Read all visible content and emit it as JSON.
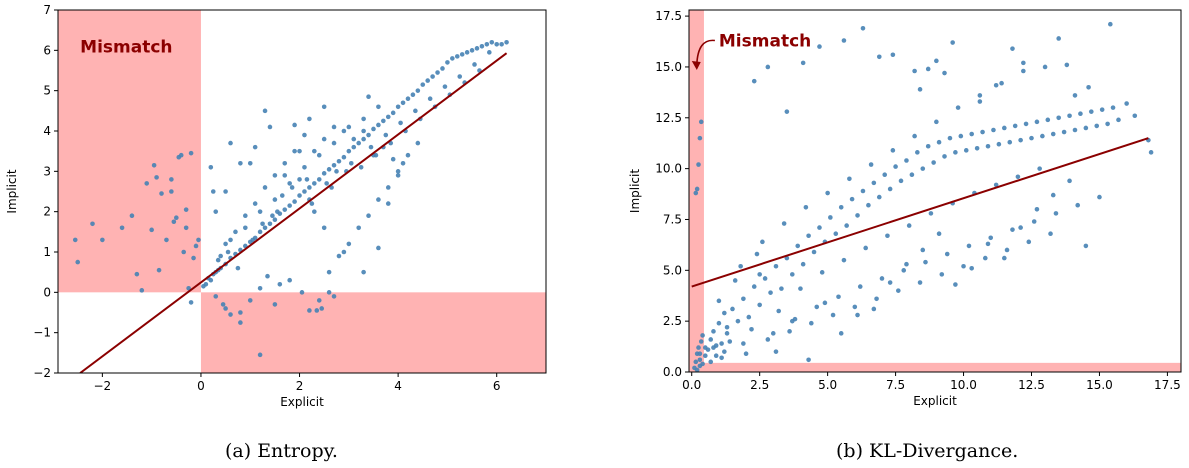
{
  "panels": [
    {
      "caption": "(a) Entropy."
    },
    {
      "caption": "(b) KL-Divergance."
    }
  ],
  "colors": {
    "points": "#4682b4",
    "fit_line": "#8b0000",
    "mismatch_fill": "#ffb3b3",
    "annotation": "#8b0000"
  },
  "chart_data": [
    {
      "type": "scatter",
      "title": "",
      "xlabel": "Explicit",
      "ylabel": "Implicit",
      "xlim": [
        -2.9,
        7.0
      ],
      "ylim": [
        -2.0,
        7.0
      ],
      "xticks": [
        -2,
        0,
        2,
        4,
        6
      ],
      "xtick_labels": [
        "−2",
        "0",
        "2",
        "4",
        "6"
      ],
      "yticks": [
        -2,
        -1,
        0,
        1,
        2,
        3,
        4,
        5,
        6,
        7
      ],
      "ytick_labels": [
        "−2",
        "−1",
        "0",
        "1",
        "2",
        "3",
        "4",
        "5",
        "6",
        "7"
      ],
      "grid": false,
      "mismatch_regions": [
        {
          "x": [
            -2.9,
            0.0
          ],
          "y": [
            0.0,
            7.0
          ]
        },
        {
          "x": [
            0.0,
            7.0
          ],
          "y": [
            -2.0,
            0.0
          ]
        }
      ],
      "annotation": {
        "text": "Mismatch",
        "x": -2.45,
        "y": 6.1
      },
      "fit_line": {
        "x": [
          -2.45,
          6.2
        ],
        "y": [
          -2.0,
          5.93
        ]
      },
      "series": [
        {
          "x": [
            -2.55,
            -2.5,
            -2.2,
            -2.0,
            -1.6,
            -1.3,
            -1.1,
            -1.0,
            -0.95,
            -0.9,
            -0.8,
            -0.6,
            -0.5,
            -0.45,
            -0.4,
            -0.3,
            -0.25,
            -0.2,
            -0.15,
            -0.1,
            -0.05,
            -1.2,
            -1.4,
            -0.7,
            -0.85,
            -0.55,
            -0.35,
            -0.6,
            -0.3,
            -0.2,
            0.05,
            0.1,
            0.15,
            0.2,
            0.25,
            0.3,
            0.35,
            0.4,
            0.5,
            0.6,
            0.7,
            0.8,
            0.9,
            1.0,
            1.1,
            1.2,
            1.3,
            1.4,
            1.5,
            1.6,
            1.7,
            1.8,
            1.9,
            2.0,
            2.1,
            2.2,
            2.3,
            2.4,
            2.5,
            2.6,
            2.7,
            2.8,
            2.9,
            3.0,
            3.1,
            3.2,
            3.3,
            3.4,
            3.5,
            3.6,
            3.7,
            3.8,
            3.9,
            4.0,
            4.1,
            4.2,
            4.3,
            4.4,
            4.5,
            4.6,
            4.7,
            4.8,
            4.9,
            5.0,
            5.1,
            5.2,
            5.3,
            5.4,
            5.5,
            5.6,
            5.7,
            5.8,
            5.9,
            6.0,
            6.1,
            6.2,
            0.3,
            0.45,
            0.6,
            0.8,
            1.0,
            1.2,
            1.35,
            1.6,
            1.8,
            2.05,
            2.2,
            2.4,
            2.6,
            2.8,
            3.0,
            3.2,
            3.4,
            3.6,
            3.8,
            4.0,
            4.2,
            4.4,
            0.5,
            0.7,
            0.9,
            1.1,
            1.3,
            1.5,
            1.7,
            1.9,
            2.1,
            2.3,
            2.5,
            2.7,
            2.9,
            3.1,
            3.3,
            3.5,
            3.7,
            3.9,
            4.1,
            0.4,
            0.6,
            0.9,
            1.2,
            1.5,
            1.8,
            2.1,
            2.4,
            2.7,
            3.0,
            3.3,
            3.6,
            0.3,
            0.5,
            0.8,
            1.1,
            1.4,
            1.7,
            2.0,
            2.2,
            2.3,
            2.5,
            0.25,
            0.6,
            1.0,
            1.3,
            2.0,
            2.2,
            2.5,
            0.5,
            1.2,
            2.6,
            0.2,
            2.7,
            0.8,
            1.5,
            3.4,
            1.9,
            2.9,
            3.3,
            3.6,
            3.8,
            4.0,
            2.35,
            2.45,
            0.35,
            0.55,
            0.75,
            1.05,
            1.45,
            1.65,
            2.15,
            2.55,
            2.75,
            3.05,
            3.45,
            3.75,
            4.05,
            4.35,
            4.65,
            4.95,
            5.25,
            5.55,
            5.85,
            1.25,
            1.55,
            1.85,
            2.25,
            2.65,
            2.95,
            3.25,
            3.55,
            3.85,
            4.15,
            4.45,
            4.75,
            5.05,
            5.35,
            5.65
          ],
          "y": [
            1.3,
            0.75,
            1.7,
            1.3,
            1.6,
            0.45,
            2.7,
            1.55,
            3.15,
            2.85,
            2.45,
            2.8,
            1.85,
            3.35,
            3.4,
            1.6,
            0.1,
            -0.25,
            0.85,
            1.15,
            1.3,
            0.05,
            1.9,
            1.3,
            0.55,
            1.75,
            1.0,
            2.5,
            2.05,
            3.45,
            0.15,
            0.2,
            0.35,
            0.3,
            0.45,
            0.5,
            0.55,
            0.6,
            0.7,
            0.85,
            0.95,
            1.05,
            1.15,
            1.25,
            1.35,
            1.5,
            1.6,
            1.7,
            1.8,
            1.95,
            2.05,
            2.15,
            2.25,
            2.4,
            2.5,
            2.6,
            2.7,
            2.8,
            2.95,
            3.05,
            3.15,
            3.25,
            3.35,
            3.5,
            3.6,
            3.7,
            3.8,
            3.9,
            4.05,
            4.15,
            4.25,
            4.35,
            4.45,
            4.6,
            4.7,
            4.8,
            4.9,
            5.0,
            5.15,
            5.25,
            5.35,
            5.45,
            5.55,
            5.7,
            5.8,
            5.85,
            5.9,
            5.95,
            6.0,
            6.05,
            6.1,
            6.15,
            6.2,
            6.15,
            6.15,
            6.2,
            -0.1,
            -0.3,
            -0.55,
            -0.75,
            -0.2,
            0.1,
            0.4,
            0.2,
            0.3,
            0.0,
            -0.45,
            -0.2,
            0.5,
            0.9,
            1.2,
            1.6,
            1.9,
            2.3,
            2.6,
            3.0,
            3.4,
            3.7,
            1.2,
            1.5,
            1.9,
            2.2,
            2.6,
            2.9,
            3.2,
            3.5,
            3.9,
            3.5,
            3.8,
            4.1,
            4.0,
            3.8,
            4.0,
            3.4,
            3.6,
            3.3,
            3.2,
            0.9,
            1.3,
            1.6,
            2.0,
            2.3,
            2.7,
            3.1,
            3.4,
            3.7,
            4.1,
            4.3,
            4.6,
            2.0,
            2.5,
            3.2,
            3.6,
            4.1,
            2.9,
            3.5,
            2.3,
            2.0,
            1.6,
            2.5,
            3.7,
            3.2,
            4.5,
            2.8,
            4.3,
            4.6,
            -0.4,
            -1.55,
            0.0,
            3.1,
            -0.1,
            -0.5,
            -0.3,
            4.85,
            4.15,
            1.0,
            0.5,
            1.1,
            2.2,
            2.9,
            -0.45,
            -0.4,
            0.8,
            1.0,
            0.6,
            1.3,
            1.9,
            2.4,
            2.8,
            2.7,
            3.0,
            3.2,
            3.6,
            3.9,
            4.2,
            4.5,
            4.8,
            5.1,
            5.35,
            5.65,
            5.95,
            1.7,
            2.0,
            2.6,
            2.2,
            2.6,
            3.0,
            3.1,
            3.4,
            3.7,
            4.0,
            4.3,
            4.6,
            4.9,
            5.2,
            5.5
          ]
        }
      ]
    },
    {
      "type": "scatter",
      "title": "",
      "xlabel": "Explicit",
      "ylabel": "Implicit",
      "xlim": [
        -0.1,
        18.0
      ],
      "ylim": [
        0.0,
        17.8
      ],
      "xticks": [
        0.0,
        2.5,
        5.0,
        7.5,
        10.0,
        12.5,
        15.0,
        17.5
      ],
      "xtick_labels": [
        "0.0",
        "2.5",
        "5.0",
        "7.5",
        "10.0",
        "12.5",
        "15.0",
        "17.5"
      ],
      "yticks": [
        0.0,
        2.5,
        5.0,
        7.5,
        10.0,
        12.5,
        15.0,
        17.5
      ],
      "ytick_labels": [
        "0.0",
        "2.5",
        "5.0",
        "7.5",
        "10.0",
        "12.5",
        "15.0",
        "17.5"
      ],
      "grid": false,
      "mismatch_regions": [
        {
          "x": [
            -0.1,
            0.45
          ],
          "y": [
            0.0,
            17.8
          ]
        },
        {
          "x": [
            -0.1,
            18.0
          ],
          "y": [
            0.0,
            0.45
          ]
        }
      ],
      "annotation": {
        "text": "Mismatch",
        "x": 1.0,
        "y": 16.3,
        "arrow_to": [
          0.15,
          14.9
        ]
      },
      "fit_line": {
        "x": [
          0.0,
          16.8
        ],
        "y": [
          4.2,
          11.5
        ]
      },
      "series": [
        {
          "x": [
            0.1,
            0.15,
            0.2,
            0.25,
            0.3,
            0.35,
            0.4,
            0.2,
            0.3,
            0.35,
            0.15,
            0.25,
            0.4,
            0.3,
            0.2,
            0.5,
            0.6,
            0.7,
            0.8,
            0.9,
            1.0,
            1.1,
            1.2,
            1.3,
            1.5,
            1.7,
            1.9,
            2.1,
            2.3,
            2.5,
            2.7,
            2.9,
            3.1,
            3.3,
            3.5,
            3.7,
            3.9,
            4.1,
            4.3,
            4.5,
            4.7,
            4.9,
            5.1,
            5.3,
            5.5,
            5.7,
            5.9,
            6.1,
            6.3,
            6.5,
            6.7,
            6.9,
            7.1,
            7.3,
            7.5,
            7.7,
            7.9,
            8.1,
            8.3,
            8.5,
            8.7,
            8.9,
            9.1,
            9.3,
            9.5,
            9.7,
            9.9,
            10.1,
            10.3,
            10.5,
            10.7,
            10.9,
            11.1,
            11.3,
            11.5,
            11.7,
            11.9,
            12.1,
            12.3,
            12.5,
            12.7,
            12.9,
            13.1,
            13.3,
            13.5,
            13.7,
            13.9,
            14.1,
            14.3,
            14.5,
            14.7,
            14.9,
            15.1,
            15.3,
            15.5,
            15.7,
            16.0,
            16.3,
            16.8,
            1.0,
            1.4,
            1.8,
            2.2,
            2.6,
            3.0,
            3.4,
            3.8,
            4.2,
            4.6,
            5.0,
            5.4,
            5.8,
            6.2,
            6.6,
            7.0,
            7.4,
            7.8,
            8.2,
            8.6,
            9.0,
            9.4,
            9.8,
            10.2,
            10.6,
            11.0,
            11.4,
            11.8,
            12.2,
            12.6,
            13.0,
            13.4,
            13.8,
            14.2,
            14.6,
            15.0,
            1.2,
            1.6,
            2.0,
            2.4,
            2.8,
            3.2,
            3.6,
            4.0,
            4.4,
            4.8,
            5.2,
            5.6,
            6.0,
            6.4,
            6.8,
            7.2,
            7.6,
            8.0,
            8.4,
            8.8,
            9.2,
            9.6,
            10.0,
            10.4,
            10.8,
            11.2,
            11.6,
            12.0,
            12.4,
            12.8,
            13.2,
            0.8,
            1.3,
            1.9,
            2.5,
            3.1,
            3.7,
            4.3,
            4.9,
            5.5,
            6.1,
            6.7,
            7.3,
            7.9,
            8.5,
            9.1,
            9.7,
            10.3,
            10.9,
            11.5,
            12.1,
            12.7,
            13.3,
            13.9,
            14.5,
            2.8,
            4.1,
            5.6,
            6.3,
            7.4,
            8.2,
            8.7,
            9.0,
            9.6,
            11.2,
            12.2,
            14.1,
            15.4,
            16.9,
            2.3,
            3.5,
            4.7,
            6.9,
            8.4,
            9.3,
            10.6,
            11.8,
            13.5,
            0.3,
            0.5,
            0.7,
            0.9,
            1.1
          ],
          "y": [
            0.2,
            0.5,
            0.9,
            1.2,
            0.6,
            1.5,
            0.4,
            9.0,
            11.5,
            12.3,
            8.8,
            10.2,
            1.8,
            0.3,
            0.1,
            0.8,
            1.1,
            1.6,
            2.0,
            1.3,
            2.4,
            0.7,
            2.9,
            1.9,
            3.1,
            2.5,
            3.6,
            2.7,
            4.2,
            3.3,
            4.6,
            3.9,
            5.2,
            4.1,
            5.6,
            4.8,
            6.2,
            5.3,
            6.7,
            5.9,
            7.1,
            6.4,
            7.6,
            6.8,
            8.1,
            7.2,
            8.5,
            7.7,
            8.9,
            8.2,
            9.3,
            8.6,
            9.7,
            9.0,
            10.1,
            9.4,
            10.4,
            9.7,
            10.8,
            10.0,
            11.1,
            10.3,
            11.3,
            10.6,
            11.5,
            10.8,
            11.6,
            10.9,
            11.7,
            11.0,
            11.8,
            11.1,
            11.9,
            11.2,
            12.0,
            11.3,
            12.1,
            11.4,
            12.2,
            11.5,
            12.3,
            11.6,
            12.4,
            11.7,
            12.5,
            11.8,
            12.6,
            11.9,
            12.7,
            12.0,
            12.8,
            12.1,
            12.9,
            12.2,
            13.0,
            12.4,
            13.2,
            12.6,
            11.4,
            3.5,
            1.5,
            5.2,
            2.1,
            6.4,
            1.9,
            7.3,
            2.6,
            8.1,
            3.2,
            8.8,
            3.7,
            9.5,
            4.2,
            10.2,
            4.6,
            10.9,
            5.0,
            11.6,
            5.4,
            12.3,
            5.8,
            13.0,
            6.2,
            13.6,
            6.6,
            14.2,
            7.0,
            14.8,
            7.4,
            15.0,
            7.8,
            15.1,
            8.2,
            14.0,
            8.6,
            1.0,
            4.5,
            0.9,
            5.8,
            1.6,
            3.0,
            2.0,
            4.1,
            2.4,
            4.9,
            2.8,
            5.5,
            3.2,
            6.1,
            3.6,
            6.7,
            4.0,
            7.2,
            4.4,
            7.8,
            4.8,
            8.3,
            5.2,
            8.8,
            5.6,
            9.2,
            6.0,
            9.6,
            6.4,
            10.0,
            6.8,
            1.2,
            2.2,
            1.4,
            4.8,
            1.0,
            2.5,
            0.6,
            3.4,
            1.9,
            2.8,
            3.1,
            4.4,
            5.3,
            6.0,
            6.8,
            4.3,
            5.1,
            6.3,
            5.6,
            7.1,
            8.0,
            8.7,
            9.4,
            6.2,
            15.0,
            15.2,
            16.3,
            16.9,
            15.6,
            14.8,
            14.9,
            15.3,
            16.2,
            14.1,
            15.2,
            13.6,
            17.1,
            10.8,
            14.3,
            12.8,
            16.0,
            15.5,
            13.9,
            14.7,
            13.3,
            15.9,
            16.4,
            0.9,
            1.2,
            0.5,
            0.8,
            1.4
          ]
        }
      ]
    }
  ]
}
